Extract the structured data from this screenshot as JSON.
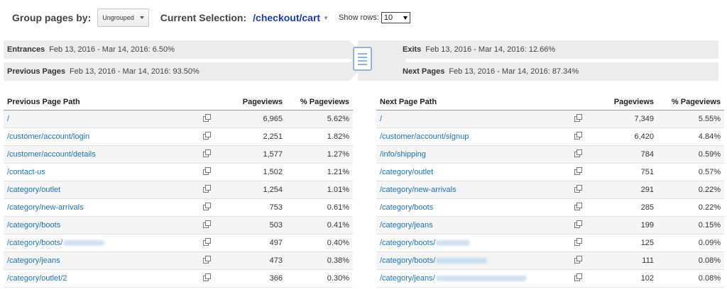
{
  "toolbar": {
    "group_label": "Group pages by:",
    "group_value": "Ungrouped",
    "selection_label": "Current Selection:",
    "selection_value": "/checkout/cart",
    "show_rows_label": "Show rows:",
    "show_rows_value": "10"
  },
  "flow": {
    "entrances": {
      "label": "Entrances",
      "text": "Feb 13, 2016 - Mar 14, 2016: 6.50%"
    },
    "previous": {
      "label": "Previous Pages",
      "text": "Feb 13, 2016 - Mar 14, 2016: 93.50%"
    },
    "exits": {
      "label": "Exits",
      "text": "Feb 13, 2016 - Mar 14, 2016: 12.66%"
    },
    "next": {
      "label": "Next Pages",
      "text": "Feb 13, 2016 - Mar 14, 2016: 87.34%"
    }
  },
  "previous_table": {
    "headers": {
      "path": "Previous Page Path",
      "pageviews": "Pageviews",
      "pct": "% Pageviews"
    },
    "rows": [
      {
        "path": "/",
        "pageviews": "6,965",
        "pct": "5.62%"
      },
      {
        "path": "/customer/account/login",
        "pageviews": "2,251",
        "pct": "1.82%"
      },
      {
        "path": "/customer/account/details",
        "pageviews": "1,577",
        "pct": "1.27%"
      },
      {
        "path": "/contact-us",
        "pageviews": "1,502",
        "pct": "1.21%"
      },
      {
        "path": "/category/outlet",
        "pageviews": "1,254",
        "pct": "1.01%"
      },
      {
        "path": "/category/new-arrivals",
        "pageviews": "753",
        "pct": "0.61%"
      },
      {
        "path": "/category/boots",
        "pageviews": "503",
        "pct": "0.41%"
      },
      {
        "path": "/category/boots/",
        "pageviews": "497",
        "pct": "0.40%"
      },
      {
        "path": "/category/jeans",
        "pageviews": "473",
        "pct": "0.38%"
      },
      {
        "path": "/category/outlet/2",
        "pageviews": "366",
        "pct": "0.30%"
      }
    ]
  },
  "next_table": {
    "headers": {
      "path": "Next Page Path",
      "pageviews": "Pageviews",
      "pct": "% Pageviews"
    },
    "rows": [
      {
        "path": "/",
        "pageviews": "7,349",
        "pct": "5.55%"
      },
      {
        "path": "/customer/account/signup",
        "pageviews": "6,420",
        "pct": "4.84%"
      },
      {
        "path": "/info/shipping",
        "pageviews": "784",
        "pct": "0.59%"
      },
      {
        "path": "/category/outlet",
        "pageviews": "751",
        "pct": "0.57%"
      },
      {
        "path": "/category/new-arrivals",
        "pageviews": "291",
        "pct": "0.22%"
      },
      {
        "path": "/category/boots",
        "pageviews": "285",
        "pct": "0.22%"
      },
      {
        "path": "/category/jeans",
        "pageviews": "199",
        "pct": "0.15%"
      },
      {
        "path": "/category/boots/",
        "pageviews": "125",
        "pct": "0.09%"
      },
      {
        "path": "/category/boots/",
        "pageviews": "111",
        "pct": "0.08%"
      },
      {
        "path": "/category/jeans/",
        "pageviews": "102",
        "pct": "0.08%"
      }
    ]
  }
}
